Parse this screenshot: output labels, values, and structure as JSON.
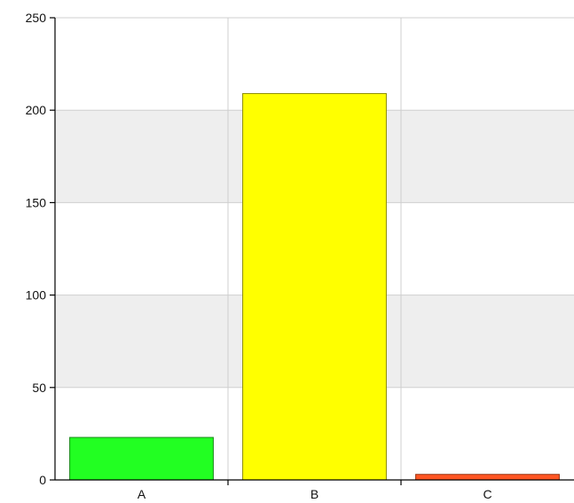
{
  "chart_data": {
    "type": "bar",
    "title": "",
    "xlabel": "",
    "ylabel": "",
    "categories": [
      "A",
      "B",
      "C"
    ],
    "values": [
      23,
      209,
      3
    ],
    "bar_colors": [
      "#22ff22",
      "#ffff00",
      "#ff5522"
    ],
    "bar_edge_colors": [
      "#1a8a1a",
      "#8a8a00",
      "#993311"
    ],
    "ylim": [
      0,
      250
    ],
    "yticks": [
      "0",
      "50",
      "100",
      "150",
      "200",
      "250"
    ],
    "grid": true,
    "plot_background": "#eeeeee",
    "alternate_band_background": "#ffffff"
  }
}
